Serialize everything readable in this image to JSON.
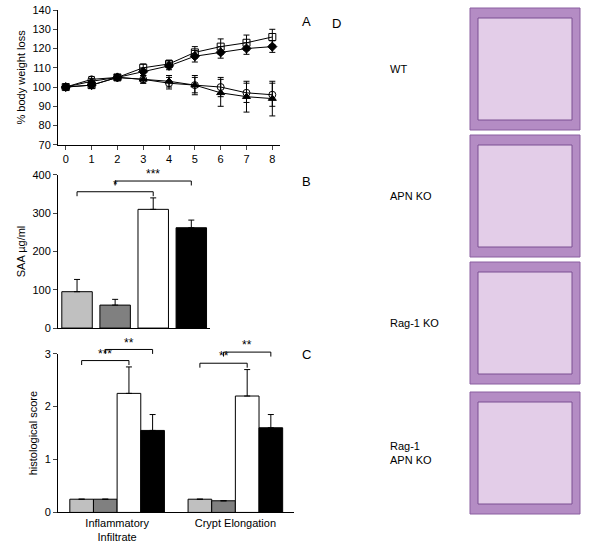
{
  "chart_data": [
    {
      "type": "line",
      "title": "A",
      "ylabel": "% body weight loss",
      "x": [
        0,
        1,
        2,
        3,
        4,
        5,
        6,
        7,
        8
      ],
      "xlim": [
        -0.3,
        8.3
      ],
      "xticks": [
        0,
        1,
        2,
        3,
        4,
        5,
        6,
        7,
        8
      ],
      "ylim": [
        70,
        140
      ],
      "yticks": [
        70,
        80,
        90,
        100,
        110,
        120,
        130,
        140
      ],
      "grid": false,
      "series": [
        {
          "color": "#000000",
          "marker": "square-open",
          "values": [
            100,
            101,
            105,
            110,
            112,
            118,
            121,
            123,
            126
          ],
          "errors": [
            1,
            1.5,
            1.5,
            2,
            2,
            3,
            4,
            4,
            4
          ]
        },
        {
          "color": "#000000",
          "marker": "diamond",
          "values": [
            100,
            101,
            105,
            108,
            111,
            116,
            118,
            120,
            121
          ],
          "errors": [
            1,
            1.5,
            1.5,
            2,
            2,
            3,
            3,
            3,
            3
          ]
        },
        {
          "color": "#000000",
          "marker": "circle-open",
          "values": [
            100,
            104,
            105,
            104,
            102,
            101,
            100,
            97,
            96
          ],
          "errors": [
            1,
            1.5,
            1.5,
            2,
            3,
            4,
            5,
            5,
            6
          ]
        },
        {
          "color": "#000000",
          "marker": "triangle-up",
          "values": [
            100,
            103,
            105,
            104,
            103,
            101,
            97,
            95,
            94
          ],
          "errors": [
            1,
            1.5,
            1.5,
            2,
            3,
            5,
            7,
            8,
            9
          ]
        }
      ]
    },
    {
      "type": "bar",
      "title": "B",
      "ylabel": "SAA µg/ml",
      "categories": [
        null,
        null,
        null,
        null
      ],
      "values": [
        95,
        60,
        310,
        262
      ],
      "errors": [
        32,
        15,
        30,
        20
      ],
      "colors": [
        "#c0c0c0",
        "#808080",
        "#ffffff",
        "#000000"
      ],
      "ylim": [
        0,
        400
      ],
      "yticks": [
        0,
        100,
        200,
        300,
        400
      ],
      "grid": false,
      "annotations": [
        {
          "text": "*",
          "from": 0,
          "to": 2
        },
        {
          "text": "***",
          "from": 1,
          "to": 3
        }
      ]
    },
    {
      "type": "bar",
      "title": "C",
      "ylabel": "histological score",
      "categories": [
        "Inflammatory Infiltrate",
        "Crypt Elongation"
      ],
      "series": [
        {
          "color": "#c0c0c0",
          "values": [
            0.25,
            0.25
          ],
          "errors": [
            0,
            0
          ]
        },
        {
          "color": "#808080",
          "values": [
            0.25,
            0.22
          ],
          "errors": [
            0,
            0
          ]
        },
        {
          "color": "#ffffff",
          "values": [
            2.25,
            2.2
          ],
          "errors": [
            0.5,
            0.5
          ]
        },
        {
          "color": "#000000",
          "values": [
            1.55,
            1.6
          ],
          "errors": [
            0.3,
            0.25
          ]
        }
      ],
      "ylim": [
        0,
        3
      ],
      "yticks": [
        0,
        1,
        2,
        3
      ],
      "grid": false,
      "annotations": [
        {
          "text": "***",
          "category": 0,
          "from": 0,
          "to": 2
        },
        {
          "text": "**",
          "category": 0,
          "from": 1,
          "to": 3
        },
        {
          "text": "**",
          "category": 1,
          "from": 0,
          "to": 2
        },
        {
          "text": "**",
          "category": 1,
          "from": 1,
          "to": 3
        }
      ]
    }
  ],
  "panel_d": {
    "title": "D",
    "images": [
      {
        "label": [
          "WT"
        ]
      },
      {
        "label": [
          "APN KO"
        ]
      },
      {
        "label": [
          "Rag-1 KO"
        ]
      },
      {
        "label": [
          "Rag-1",
          "APN KO"
        ]
      }
    ]
  }
}
